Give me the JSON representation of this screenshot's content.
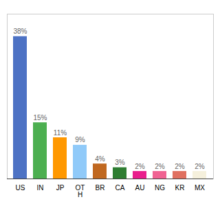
{
  "chart_data": {
    "type": "bar",
    "categories": [
      "US",
      "IN",
      "JP",
      "OT\nH",
      "BR",
      "CA",
      "AU",
      "NG",
      "KR",
      "MX"
    ],
    "values": [
      38,
      15,
      11,
      9,
      4,
      3,
      2,
      2,
      2,
      2
    ],
    "value_labels": [
      "38%",
      "15%",
      "11%",
      "9%",
      "4%",
      "3%",
      "2%",
      "2%",
      "2%",
      "2%"
    ],
    "colors": [
      "#4d72c4",
      "#4caf50",
      "#ff9800",
      "#90caf9",
      "#c06820",
      "#2e7d32",
      "#e91e8c",
      "#f06292",
      "#e07060",
      "#f5f0dc"
    ],
    "ylim": [
      0,
      44
    ],
    "grid": false,
    "data_labels": true,
    "tick_labels": "x"
  }
}
